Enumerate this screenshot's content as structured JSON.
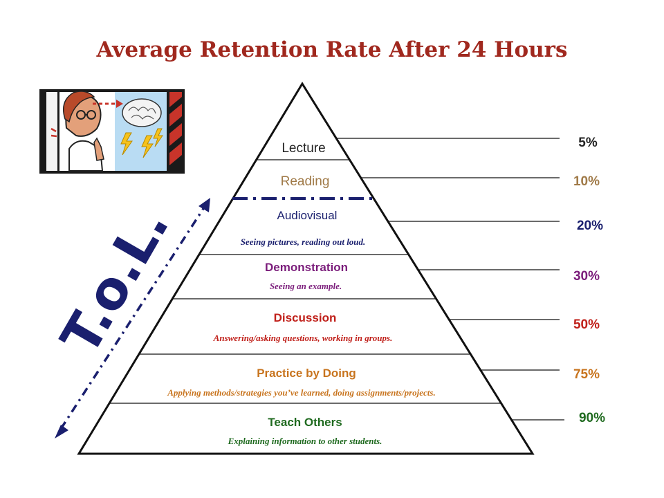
{
  "title": "Average Retention Rate After 24 Hours",
  "side_label": "T.o.L.",
  "colors": {
    "title": "#a0281e",
    "navy": "#1a1f6e",
    "purple": "#7b1d7b",
    "red": "#c0201a",
    "orange": "#c8741e",
    "green": "#1f6a1f",
    "reading": "#a07a48"
  },
  "levels": [
    {
      "label": "Lecture",
      "desc": "",
      "percent": "5%"
    },
    {
      "label": "Reading",
      "desc": "",
      "percent": "10%"
    },
    {
      "label": "Audiovisual",
      "desc": "Seeing pictures, reading out loud.",
      "percent": "20%"
    },
    {
      "label": "Demonstration",
      "desc": "Seeing an example.",
      "percent": "30%"
    },
    {
      "label": "Discussion",
      "desc": "Answering/asking questions, working in groups.",
      "percent": "50%"
    },
    {
      "label": "Practice by Doing",
      "desc": "Applying methods/strategies you’ve learned, doing assignments/projects.",
      "percent": "75%"
    },
    {
      "label": "Teach Others",
      "desc": "Explaining information to other students.",
      "percent": "90%"
    }
  ],
  "clipart": {
    "icon": "thinking-man-brain-icon"
  }
}
